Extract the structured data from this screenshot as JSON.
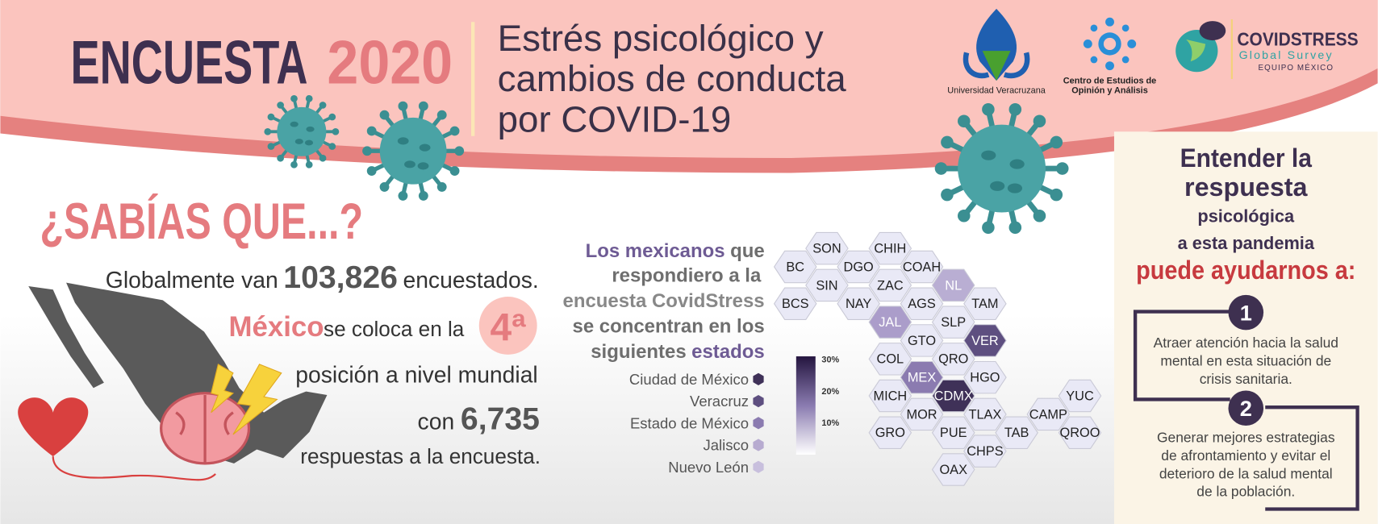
{
  "header": {
    "title": "ENCUESTA",
    "year": "2020",
    "subtitle": [
      "Estrés psicológico y",
      "cambios de conducta",
      "por COVID-19"
    ],
    "logos": {
      "university": "Universidad Veracruzana",
      "center": [
        "Centro de Estudios de",
        "Opinión y Análisis"
      ],
      "covidstress": "COVIDSTRESS",
      "covidstress_sub": "Global Survey",
      "covidstress_team": "EQUIPO MÉXICO"
    }
  },
  "facts": {
    "heading": "¿SABÍAS QUE...?",
    "line1": [
      "Globalmente van",
      "103,826",
      "encuestados."
    ],
    "line2": [
      "México",
      "se coloca en la",
      "4ª"
    ],
    "line3": "posición a nivel mundial",
    "line4": [
      "con",
      "6,735"
    ],
    "line5": "respuestas a la encuesta."
  },
  "map": {
    "heading": [
      [
        "Los mexicanos",
        "que"
      ],
      [
        "respondiero a la"
      ],
      [
        "encuesta CovidStress"
      ],
      [
        "se concentran en los"
      ],
      [
        "siguientes",
        "estados"
      ]
    ],
    "legend": [
      {
        "name": "Ciudad de México",
        "color": "#3f3158"
      },
      {
        "name": "Veracruz",
        "color": "#5e4f80"
      },
      {
        "name": "Estado de México",
        "color": "#8b7bb0"
      },
      {
        "name": "Jalisco",
        "color": "#b7abd0"
      },
      {
        "name": "Nuevo León",
        "color": "#c8bfdd"
      }
    ],
    "scale_labels": [
      "30%",
      "20%",
      "10%"
    ],
    "hexes": [
      {
        "label": "SON",
        "color": "#e9e9f6"
      },
      {
        "label": "CHIH",
        "color": "#e9e9f6"
      },
      {
        "label": "BC",
        "color": "#e9e9f6"
      },
      {
        "label": "DGO",
        "color": "#e9e9f6"
      },
      {
        "label": "COAH",
        "color": "#e9e9f6"
      },
      {
        "label": "SIN",
        "color": "#e9e9f6"
      },
      {
        "label": "ZAC",
        "color": "#e9e9f6"
      },
      {
        "label": "NL",
        "color": "#b9aed3"
      },
      {
        "label": "BCS",
        "color": "#e9e9f6"
      },
      {
        "label": "NAY",
        "color": "#e9e9f6"
      },
      {
        "label": "AGS",
        "color": "#e9e9f6"
      },
      {
        "label": "TAM",
        "color": "#e9e9f6"
      },
      {
        "label": "JAL",
        "color": "#ab9dca"
      },
      {
        "label": "SLP",
        "color": "#e9e9f6"
      },
      {
        "label": "GTO",
        "color": "#e9e9f6"
      },
      {
        "label": "VER",
        "color": "#5e4f80"
      },
      {
        "label": "COL",
        "color": "#e9e9f6"
      },
      {
        "label": "QRO",
        "color": "#e9e9f6"
      },
      {
        "label": "MEX",
        "color": "#8b7bb0"
      },
      {
        "label": "HGO",
        "color": "#e9e9f6"
      },
      {
        "label": "MICH",
        "color": "#e9e9f6"
      },
      {
        "label": "CDMX",
        "color": "#3f3158"
      },
      {
        "label": "YUC",
        "color": "#e9e9f6"
      },
      {
        "label": "MOR",
        "color": "#e9e9f6"
      },
      {
        "label": "TLAX",
        "color": "#e9e9f6"
      },
      {
        "label": "CAMP",
        "color": "#e9e9f6"
      },
      {
        "label": "GRO",
        "color": "#e9e9f6"
      },
      {
        "label": "PUE",
        "color": "#e9e9f6"
      },
      {
        "label": "TAB",
        "color": "#e9e9f6"
      },
      {
        "label": "QROO",
        "color": "#e9e9f6"
      },
      {
        "label": "CHPS",
        "color": "#e9e9f6"
      },
      {
        "label": "OAX",
        "color": "#e9e9f6"
      }
    ]
  },
  "panel": {
    "heading": [
      "Entender la",
      "respuesta",
      "psicológica",
      "a esta pandemia",
      "puede ayudarnos a:"
    ],
    "items": [
      {
        "number": 1,
        "lines": [
          "Atraer atención hacia la salud",
          "mental en esta situación de",
          "crisis sanitaria."
        ]
      },
      {
        "number": 2,
        "lines": [
          "Generar mejores estrategias",
          "de afrontamiento y evitar el",
          "deterioro de la salud mental",
          "de la población."
        ]
      }
    ]
  }
}
